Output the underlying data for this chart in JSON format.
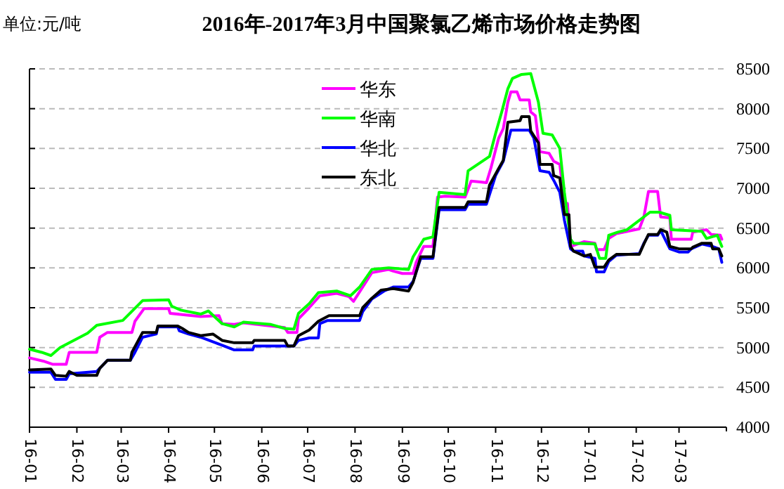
{
  "chart_data": {
    "type": "line",
    "title": "2016年-2017年3月中国聚氯乙烯市场价格走势图",
    "ylabel": "单位:元/吨",
    "xlim": [
      "2016-01-01",
      "2017-04-01"
    ],
    "xticks": [
      {
        "value": "2016-01",
        "label": "16-01"
      },
      {
        "value": "2016-02",
        "label": "16-02"
      },
      {
        "value": "2016-03",
        "label": "16-03"
      },
      {
        "value": "2016-04",
        "label": "16-04"
      },
      {
        "value": "2016-05",
        "label": "16-05"
      },
      {
        "value": "2016-06",
        "label": "16-06"
      },
      {
        "value": "2016-07",
        "label": "16-07"
      },
      {
        "value": "2016-08",
        "label": "16-08"
      },
      {
        "value": "2016-09",
        "label": "16-09"
      },
      {
        "value": "2016-10",
        "label": "16-10"
      },
      {
        "value": "2016-11",
        "label": "16-11"
      },
      {
        "value": "2016-12",
        "label": "16-12"
      },
      {
        "value": "2017-01",
        "label": "17-01"
      },
      {
        "value": "2017-02",
        "label": "17-02"
      },
      {
        "value": "2017-03",
        "label": "17-03"
      }
    ],
    "ylim": [
      4000,
      8500
    ],
    "yticks": [
      4000,
      4500,
      5000,
      5500,
      6000,
      6500,
      7000,
      7500,
      8000,
      8500
    ],
    "grid": "y",
    "legend": "top",
    "line_style": "solid",
    "marker": "none",
    "series": [
      {
        "name": "华东",
        "color": "#ff00ff",
        "x": [
          "2016-01-01",
          "2016-01-10",
          "2016-01-16",
          "2016-01-25",
          "2016-01-27",
          "2016-02-14",
          "2016-02-16",
          "2016-02-21",
          "2016-03-08",
          "2016-03-10",
          "2016-03-16",
          "2016-04-01",
          "2016-04-02",
          "2016-04-22",
          "2016-05-04",
          "2016-05-06",
          "2016-05-14",
          "2016-05-20",
          "2016-06-16",
          "2016-06-18",
          "2016-06-24",
          "2016-06-25",
          "2016-07-02",
          "2016-07-09",
          "2016-07-20",
          "2016-07-28",
          "2016-07-31",
          "2016-08-04",
          "2016-08-12",
          "2016-08-23",
          "2016-08-26",
          "2016-09-01",
          "2016-09-08",
          "2016-09-10",
          "2016-09-15",
          "2016-09-21",
          "2016-09-24",
          "2016-09-29",
          "2016-10-12",
          "2016-10-16",
          "2016-10-22",
          "2016-10-26",
          "2016-10-29",
          "2016-11-03",
          "2016-11-06",
          "2016-11-09",
          "2016-11-11",
          "2016-11-15",
          "2016-11-17",
          "2016-11-23",
          "2016-11-24",
          "2016-11-27",
          "2016-11-30",
          "2016-12-06",
          "2016-12-09",
          "2016-12-13",
          "2016-12-16",
          "2016-12-18",
          "2016-12-20",
          "2016-12-29",
          "2017-01-05",
          "2017-01-06",
          "2017-01-11",
          "2017-01-14",
          "2017-01-19",
          "2017-02-03",
          "2017-02-06",
          "2017-02-09",
          "2017-02-15",
          "2017-02-17",
          "2017-02-23",
          "2017-02-24",
          "2017-03-09",
          "2017-03-10",
          "2017-03-19",
          "2017-03-22",
          "2017-03-28",
          "2017-03-29"
        ],
        "values": [
          4870,
          4830,
          4790,
          4790,
          4940,
          4940,
          5130,
          5190,
          5190,
          5330,
          5490,
          5490,
          5430,
          5390,
          5400,
          5300,
          5290,
          5310,
          5250,
          5190,
          5190,
          5360,
          5500,
          5650,
          5680,
          5640,
          5580,
          5700,
          5940,
          5980,
          5960,
          5930,
          5930,
          6070,
          6270,
          6270,
          6890,
          6900,
          6890,
          7090,
          7080,
          7070,
          7260,
          7630,
          7750,
          8080,
          8210,
          8210,
          8110,
          8110,
          7960,
          7910,
          7460,
          7440,
          7340,
          7300,
          6810,
          6810,
          6270,
          6330,
          6310,
          6230,
          6230,
          6370,
          6430,
          6490,
          6640,
          6960,
          6960,
          6640,
          6630,
          6360,
          6360,
          6450,
          6480,
          6420,
          6410,
          6360
        ]
      },
      {
        "name": "华南",
        "color": "#00ff00",
        "x": [
          "2016-01-01",
          "2016-01-09",
          "2016-01-15",
          "2016-01-21",
          "2016-02-08",
          "2016-02-14",
          "2016-03-02",
          "2016-03-15",
          "2016-04-01",
          "2016-04-03",
          "2016-04-09",
          "2016-04-22",
          "2016-04-27",
          "2016-05-06",
          "2016-05-14",
          "2016-05-20",
          "2016-06-07",
          "2016-06-16",
          "2016-06-22",
          "2016-06-25",
          "2016-07-02",
          "2016-07-08",
          "2016-07-20",
          "2016-07-29",
          "2016-08-04",
          "2016-08-12",
          "2016-08-23",
          "2016-09-05",
          "2016-09-08",
          "2016-09-15",
          "2016-09-21",
          "2016-09-25",
          "2016-10-12",
          "2016-10-14",
          "2016-10-28",
          "2016-11-01",
          "2016-11-05",
          "2016-11-09",
          "2016-11-12",
          "2016-11-18",
          "2016-11-24",
          "2016-11-29",
          "2016-12-02",
          "2016-12-08",
          "2016-12-13",
          "2016-12-16",
          "2016-12-20",
          "2016-12-22",
          "2017-01-05",
          "2017-01-08",
          "2017-01-12",
          "2017-01-14",
          "2017-01-20",
          "2017-01-26",
          "2017-02-10",
          "2017-02-16",
          "2017-02-23",
          "2017-02-24",
          "2017-03-16",
          "2017-03-19",
          "2017-03-26",
          "2017-03-29"
        ],
        "values": [
          4980,
          4940,
          4900,
          5000,
          5180,
          5280,
          5340,
          5590,
          5600,
          5520,
          5470,
          5420,
          5460,
          5300,
          5260,
          5320,
          5290,
          5240,
          5230,
          5430,
          5550,
          5690,
          5710,
          5650,
          5760,
          5980,
          6000,
          5980,
          6140,
          6360,
          6390,
          6950,
          6920,
          7220,
          7400,
          7690,
          7960,
          8250,
          8380,
          8430,
          8440,
          8080,
          7690,
          7670,
          7500,
          6950,
          6360,
          6310,
          6300,
          6120,
          6120,
          6410,
          6450,
          6480,
          6700,
          6700,
          6660,
          6480,
          6460,
          6370,
          6410,
          6270
        ]
      },
      {
        "name": "华北",
        "color": "#0000ff",
        "x": [
          "2016-01-01",
          "2016-01-15",
          "2016-01-18",
          "2016-01-25",
          "2016-01-27",
          "2016-02-14",
          "2016-02-16",
          "2016-02-21",
          "2016-03-07",
          "2016-03-10",
          "2016-03-15",
          "2016-03-24",
          "2016-03-25",
          "2016-04-07",
          "2016-04-08",
          "2016-04-14",
          "2016-04-22",
          "2016-05-06",
          "2016-05-14",
          "2016-05-26",
          "2016-05-27",
          "2016-06-22",
          "2016-06-25",
          "2016-07-02",
          "2016-07-08",
          "2016-07-09",
          "2016-07-14",
          "2016-08-04",
          "2016-08-06",
          "2016-08-12",
          "2016-08-20",
          "2016-08-26",
          "2016-09-05",
          "2016-09-08",
          "2016-09-13",
          "2016-09-21",
          "2016-09-25",
          "2016-10-12",
          "2016-10-14",
          "2016-10-26",
          "2016-10-29",
          "2016-11-01",
          "2016-11-06",
          "2016-11-11",
          "2016-11-23",
          "2016-11-26",
          "2016-11-30",
          "2016-12-06",
          "2016-12-09",
          "2016-12-13",
          "2016-12-16",
          "2016-12-20",
          "2016-12-22",
          "2016-12-28",
          "2016-12-29",
          "2017-01-05",
          "2017-01-06",
          "2017-01-11",
          "2017-01-14",
          "2017-01-19",
          "2017-02-03",
          "2017-02-06",
          "2017-02-09",
          "2017-02-15",
          "2017-02-17",
          "2017-02-23",
          "2017-03-01",
          "2017-03-07",
          "2017-03-09",
          "2017-03-16",
          "2017-03-23",
          "2017-03-27",
          "2017-03-29"
        ],
        "values": [
          4690,
          4690,
          4600,
          4600,
          4670,
          4700,
          4740,
          4840,
          4840,
          4940,
          5130,
          5170,
          5260,
          5260,
          5210,
          5170,
          5130,
          5030,
          4970,
          4970,
          5020,
          5020,
          5090,
          5120,
          5120,
          5300,
          5340,
          5340,
          5450,
          5610,
          5710,
          5760,
          5760,
          5830,
          6120,
          6120,
          6730,
          6730,
          6800,
          6800,
          6980,
          7160,
          7340,
          7730,
          7730,
          7630,
          7220,
          7200,
          7100,
          6950,
          6600,
          6240,
          6210,
          6210,
          6150,
          6120,
          5950,
          5950,
          6080,
          6160,
          6180,
          6310,
          6410,
          6410,
          6470,
          6240,
          6200,
          6200,
          6240,
          6300,
          6270,
          6240,
          6070
        ]
      },
      {
        "name": "东北",
        "color": "#000000",
        "x": [
          "2016-01-01",
          "2016-01-15",
          "2016-01-18",
          "2016-01-25",
          "2016-01-27",
          "2016-02-01",
          "2016-02-14",
          "2016-02-16",
          "2016-02-21",
          "2016-03-07",
          "2016-03-08",
          "2016-03-15",
          "2016-03-24",
          "2016-03-25",
          "2016-04-07",
          "2016-04-10",
          "2016-04-14",
          "2016-04-22",
          "2016-04-30",
          "2016-05-06",
          "2016-05-14",
          "2016-05-26",
          "2016-05-27",
          "2016-06-16",
          "2016-06-18",
          "2016-06-22",
          "2016-06-25",
          "2016-07-02",
          "2016-07-08",
          "2016-07-15",
          "2016-08-04",
          "2016-08-06",
          "2016-08-12",
          "2016-08-18",
          "2016-08-26",
          "2016-09-05",
          "2016-09-08",
          "2016-09-13",
          "2016-09-21",
          "2016-09-25",
          "2016-10-12",
          "2016-10-14",
          "2016-10-26",
          "2016-10-28",
          "2016-11-03",
          "2016-11-06",
          "2016-11-09",
          "2016-11-17",
          "2016-11-18",
          "2016-11-23",
          "2016-11-24",
          "2016-11-29",
          "2016-11-30",
          "2016-12-08",
          "2016-12-09",
          "2016-12-13",
          "2016-12-16",
          "2016-12-19",
          "2016-12-20",
          "2016-12-22",
          "2016-12-29",
          "2017-01-02",
          "2017-01-05",
          "2017-01-11",
          "2017-01-14",
          "2017-01-19",
          "2017-02-03",
          "2017-02-06",
          "2017-02-09",
          "2017-02-15",
          "2017-02-17",
          "2017-02-21",
          "2017-02-23",
          "2017-03-01",
          "2017-03-09",
          "2017-03-10",
          "2017-03-16",
          "2017-03-22",
          "2017-03-23",
          "2017-03-27",
          "2017-03-29"
        ],
        "values": [
          4720,
          4730,
          4650,
          4640,
          4700,
          4650,
          4650,
          4740,
          4840,
          4840,
          4940,
          5190,
          5190,
          5270,
          5270,
          5240,
          5190,
          5150,
          5170,
          5090,
          5060,
          5060,
          5090,
          5090,
          5020,
          5020,
          5150,
          5220,
          5330,
          5400,
          5400,
          5500,
          5620,
          5720,
          5740,
          5710,
          5820,
          6140,
          6140,
          6760,
          6760,
          6830,
          6830,
          7040,
          7250,
          7350,
          7830,
          7850,
          7900,
          7900,
          7720,
          7570,
          7300,
          7300,
          7160,
          7130,
          6670,
          6670,
          6270,
          6210,
          6150,
          6170,
          6010,
          6010,
          6100,
          6170,
          6170,
          6300,
          6420,
          6420,
          6480,
          6450,
          6270,
          6240,
          6240,
          6260,
          6310,
          6310,
          6240,
          6240,
          6150
        ]
      }
    ]
  }
}
